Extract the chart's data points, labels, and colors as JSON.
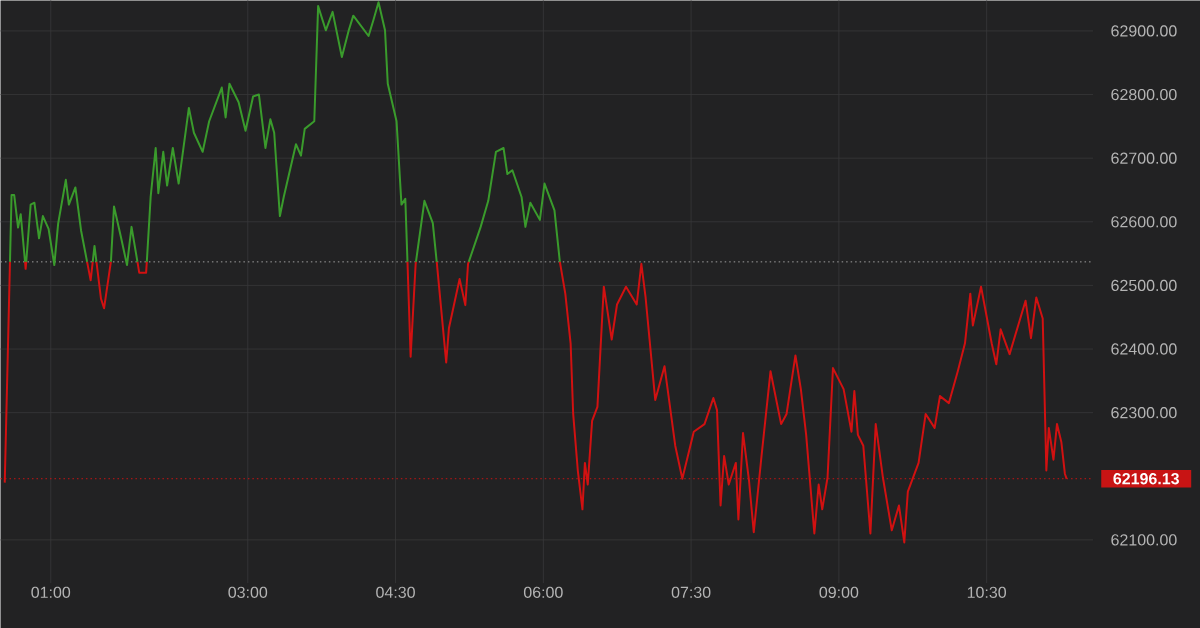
{
  "chart_data": {
    "type": "line",
    "series": [
      {
        "color": "#3a9b2c",
        "x": [
          0.586,
          0.602,
          0.629,
          0.668,
          0.695,
          0.739,
          0.745,
          0.751,
          0.796,
          0.834,
          0.881,
          0.92,
          0.978,
          1.036,
          1.075,
          1.153,
          1.184,
          1.25,
          1.308,
          1.369,
          1.405,
          1.426,
          1.444,
          1.464,
          1.51,
          1.61,
          1.611,
          1.642,
          1.715,
          1.774,
          1.82,
          1.88,
          1.898,
          1.975,
          2.014,
          2.065,
          2.092,
          2.142,
          2.181,
          2.239,
          2.298,
          2.402,
          2.453,
          2.542,
          2.608,
          2.736,
          2.775,
          2.814,
          2.907,
          2.977,
          3.054,
          3.113,
          3.179,
          3.229,
          3.268,
          3.326,
          3.365,
          3.489,
          3.54,
          3.578,
          3.675,
          3.714,
          3.792,
          3.861,
          3.955,
          4.025,
          4.071,
          4.226,
          4.277,
          4.327,
          4.393,
          4.421,
          4.51,
          4.56,
          4.599,
          4.621,
          4.653,
          4.707,
          4.793,
          4.878,
          4.917,
          4.918,
          5.014,
          5.243,
          5.364,
          5.441,
          5.519,
          5.596,
          5.635,
          5.686,
          5.779,
          5.818,
          5.868,
          5.965,
          6.012,
          6.113,
          6.167,
          6.168
        ],
        "values": [
          62537,
          62642,
          62642,
          62591,
          62612,
          62537,
          null,
          62537,
          62627,
          62630,
          62574,
          62609,
          62589,
          62532,
          62597,
          62666,
          62627,
          62654,
          62586,
          62537,
          null,
          62537,
          62562,
          62537,
          null,
          62537,
          62538,
          62624,
          62574,
          62532,
          62592,
          62537,
          null,
          62537,
          62639,
          62716,
          62645,
          62710,
          62657,
          62716,
          62660,
          62779,
          62740,
          62710,
          62758,
          62811,
          62764,
          62817,
          62788,
          62743,
          62797,
          62800,
          62716,
          62761,
          62740,
          62609,
          62639,
          62722,
          62704,
          62746,
          62758,
          62939,
          62901,
          62930,
          62859,
          62901,
          62924,
          62892,
          62918,
          62945,
          62901,
          62817,
          62758,
          62627,
          62636,
          62537,
          null,
          62537,
          62633,
          62598,
          62538,
          62537,
          null,
          62537,
          62592,
          62633,
          62710,
          62716,
          62675,
          62681,
          62639,
          62592,
          62630,
          62603,
          62660,
          62618,
          62538,
          62537
        ]
      },
      {
        "color": "#d11111",
        "x": [
          0.533,
          0.586,
          0.602,
          0.739,
          0.745,
          0.751,
          0.796,
          1.369,
          1.405,
          1.426,
          1.444,
          1.464,
          1.51,
          1.541,
          1.61,
          1.642,
          1.88,
          1.898,
          1.968,
          1.975,
          2.014,
          4.621,
          4.653,
          4.704,
          4.707,
          4.793,
          4.918,
          5.014,
          5.042,
          5.15,
          5.208,
          5.236,
          5.243,
          5.364,
          6.168,
          6.223,
          6.277,
          6.303,
          6.35,
          6.397,
          6.422,
          6.451,
          6.495,
          6.549,
          6.614,
          6.694,
          6.748,
          6.839,
          6.948,
          6.995,
          7.038,
          7.136,
          7.23,
          7.339,
          7.411,
          7.527,
          7.636,
          7.726,
          7.763,
          7.799,
          7.835,
          7.882,
          7.954,
          7.98,
          8.027,
          8.088,
          8.136,
          8.215,
          8.306,
          8.414,
          8.469,
          8.559,
          8.614,
          8.668,
          8.751,
          8.795,
          8.831,
          8.885,
          8.94,
          9.048,
          9.128,
          9.157,
          9.193,
          9.248,
          9.32,
          9.374,
          9.447,
          9.537,
          9.61,
          9.664,
          9.7,
          9.809,
          9.881,
          9.972,
          10.026,
          10.117,
          10.207,
          10.28,
          10.334,
          10.36,
          10.443,
          10.551,
          10.598,
          10.642,
          10.733,
          10.895,
          10.95,
          11.004,
          11.069,
          11.106,
          11.131,
          11.178,
          11.214,
          11.258,
          11.294,
          11.312
        ],
        "values": [
          62190,
          62537,
          null,
          62537,
          62526,
          62537,
          null,
          62537,
          62508,
          62537,
          null,
          62537,
          62479,
          62464,
          62537,
          null,
          62537,
          62520,
          62520,
          62537,
          null,
          62537,
          62388,
          62534,
          62537,
          null,
          62537,
          62379,
          62433,
          62510,
          62469,
          62534,
          62537,
          null,
          62537,
          62487,
          62409,
          62298,
          62209,
          62148,
          62221,
          62187,
          62287,
          62309,
          62498,
          62415,
          62470,
          62498,
          62470,
          62534,
          62481,
          62320,
          62373,
          62248,
          62196,
          62270,
          62282,
          62323,
          62304,
          62154,
          62232,
          62187,
          62221,
          62132,
          62268,
          62193,
          62112,
          62232,
          62365,
          62282,
          62298,
          62390,
          62337,
          62265,
          62110,
          62187,
          62148,
          62198,
          62370,
          62337,
          62270,
          62334,
          62265,
          62248,
          62110,
          62282,
          62198,
          62115,
          62154,
          62096,
          62176,
          62221,
          62298,
          62276,
          62326,
          62315,
          62365,
          62409,
          62487,
          62437,
          62498,
          62409,
          62376,
          62431,
          62392,
          62476,
          62417,
          62481,
          62448,
          62209,
          62276,
          62226,
          62282,
          62254,
          62204,
          62196
        ]
      }
    ],
    "xlim": [
      0.49,
      11.58
    ],
    "ylim": [
      62032,
      62948
    ],
    "xticks": [
      {
        "value": 1,
        "label": "01:00"
      },
      {
        "value": 3,
        "label": "03:00"
      },
      {
        "value": 4.5,
        "label": "04:30"
      },
      {
        "value": 6,
        "label": "06:00"
      },
      {
        "value": 7.5,
        "label": "07:30"
      },
      {
        "value": 9,
        "label": "09:00"
      },
      {
        "value": 10.5,
        "label": "10:30"
      }
    ],
    "yticks": [
      {
        "value": 62100,
        "label": "62100.00"
      },
      {
        "value": 62300,
        "label": "62300.00"
      },
      {
        "value": 62400,
        "label": "62400.00"
      },
      {
        "value": 62500,
        "label": "62500.00"
      },
      {
        "value": 62600,
        "label": "62600.00"
      },
      {
        "value": 62700,
        "label": "62700.00"
      },
      {
        "value": 62800,
        "label": "62800.00"
      },
      {
        "value": 62900,
        "label": "62900.00"
      }
    ],
    "grid": true,
    "ref_lines": [
      {
        "axis": "y",
        "value": 62537,
        "color": "#a0a0a0",
        "line_style": "dotted"
      },
      {
        "axis": "y",
        "value": 62196.13,
        "label": "62196.13",
        "color": "#c81414",
        "line_style": "dotted"
      }
    ]
  }
}
